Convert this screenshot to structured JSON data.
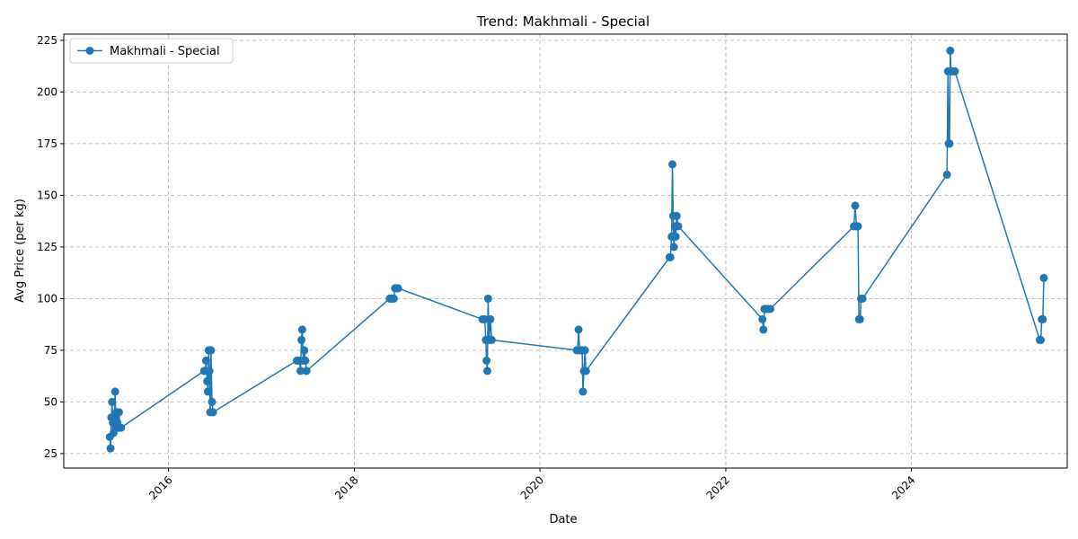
{
  "chart_data": {
    "type": "line",
    "title": "Trend: Makhmali - Special",
    "xlabel": "Date",
    "ylabel": "Avg Price (per kg)",
    "xlim": [
      "2014-11-15",
      "2025-09-05"
    ],
    "ylim": [
      18,
      228
    ],
    "x_ticks": [
      "2016-01-01",
      "2018-01-01",
      "2020-01-01",
      "2022-01-01",
      "2024-01-01"
    ],
    "x_tick_labels": [
      "2016",
      "2018",
      "2020",
      "2022",
      "2024"
    ],
    "y_ticks": [
      25,
      50,
      75,
      100,
      125,
      150,
      175,
      200,
      225
    ],
    "grid": true,
    "legend_position": "top-left",
    "colors": {
      "series": "#1f77b4",
      "grid": "#b0b0b0"
    },
    "series": [
      {
        "name": "Makhmali - Special",
        "x": [
          "2015-05-15",
          "2015-05-18",
          "2015-05-21",
          "2015-05-24",
          "2015-05-27",
          "2015-05-30",
          "2015-06-02",
          "2015-06-05",
          "2015-06-08",
          "2015-06-11",
          "2015-06-14",
          "2015-06-17",
          "2015-06-20",
          "2015-06-24",
          "2015-06-28",
          "2016-05-20",
          "2016-05-24",
          "2016-05-28",
          "2016-06-01",
          "2016-06-04",
          "2016-06-07",
          "2016-06-10",
          "2016-06-13",
          "2016-06-16",
          "2016-06-20",
          "2016-06-24",
          "2017-05-20",
          "2017-05-25",
          "2017-05-30",
          "2017-06-03",
          "2017-06-07",
          "2017-06-10",
          "2017-06-14",
          "2017-06-18",
          "2017-06-22",
          "2017-06-27",
          "2018-05-20",
          "2018-05-25",
          "2018-05-30",
          "2018-06-05",
          "2018-06-10",
          "2018-06-15",
          "2018-06-22",
          "2019-05-20",
          "2019-05-25",
          "2019-05-29",
          "2019-06-02",
          "2019-06-05",
          "2019-06-08",
          "2019-06-11",
          "2019-06-15",
          "2019-06-20",
          "2019-06-25",
          "2020-05-25",
          "2020-05-28",
          "2020-06-01",
          "2020-06-05",
          "2020-06-10",
          "2020-06-15",
          "2020-06-18",
          "2020-06-22",
          "2020-06-26",
          "2020-06-30",
          "2021-05-25",
          "2021-05-28",
          "2021-06-02",
          "2021-06-05",
          "2021-06-08",
          "2021-06-11",
          "2021-06-15",
          "2021-06-18",
          "2021-06-22",
          "2021-06-28",
          "2022-05-25",
          "2022-05-29",
          "2022-06-02",
          "2022-06-05",
          "2022-06-10",
          "2022-06-15",
          "2022-06-25",
          "2023-05-20",
          "2023-05-25",
          "2023-05-30",
          "2023-06-05",
          "2023-06-09",
          "2023-06-13",
          "2023-06-17",
          "2023-06-23",
          "2024-05-20",
          "2024-05-24",
          "2024-05-27",
          "2024-05-30",
          "2024-06-02",
          "2024-06-05",
          "2024-06-08",
          "2024-06-12",
          "2024-06-20",
          "2025-05-20",
          "2025-05-24",
          "2025-05-28",
          "2025-06-01",
          "2025-06-05"
        ],
        "y": [
          33,
          27.5,
          42.5,
          50,
          40,
          35,
          42.5,
          55,
          37.5,
          45,
          40,
          37.5,
          45,
          37.5,
          37.5,
          65,
          65,
          70,
          60,
          55,
          75,
          65,
          45,
          75,
          50,
          45,
          70,
          70,
          70,
          65,
          80,
          85,
          70,
          75,
          70,
          65,
          100,
          100,
          100,
          100,
          105,
          105,
          105,
          90,
          90,
          90,
          80,
          70,
          65,
          100,
          80,
          90,
          80,
          75,
          75,
          85,
          75,
          75,
          75,
          55,
          65,
          75,
          65,
          120,
          120,
          130,
          165,
          140,
          125,
          135,
          130,
          140,
          135,
          90,
          85,
          95,
          95,
          95,
          95,
          95,
          135,
          145,
          135,
          135,
          90,
          90,
          100,
          100,
          160,
          210,
          175,
          175,
          220,
          210,
          210,
          210,
          210,
          80,
          80,
          90,
          90,
          110
        ]
      }
    ]
  }
}
